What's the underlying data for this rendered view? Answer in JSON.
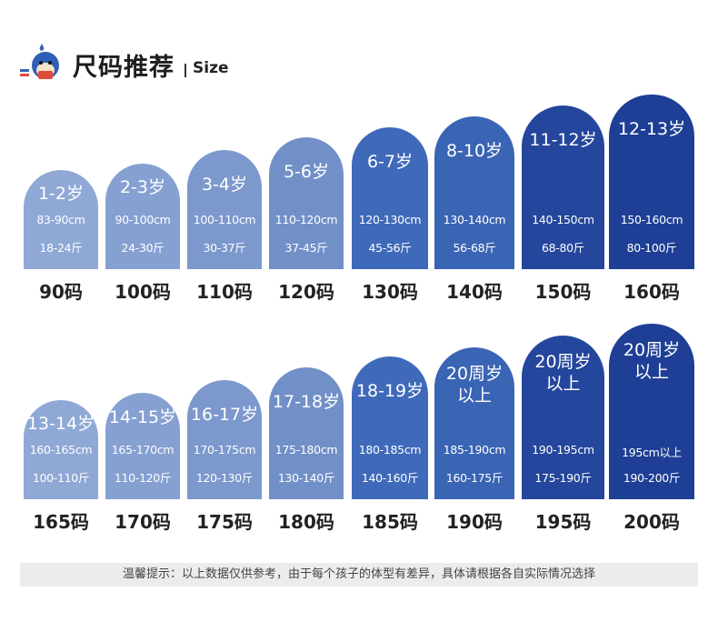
{
  "header": {
    "title": "尺码推荐",
    "subtitle": "Size",
    "mascot_icon": "whale-mascot-icon"
  },
  "rows": [
    {
      "items": [
        {
          "age": "1-2岁",
          "height": "83-90cm",
          "weight": "18-24斤",
          "size": "90码",
          "color": "#8fa8d6"
        },
        {
          "age": "2-3岁",
          "height": "90-100cm",
          "weight": "24-30斤",
          "size": "100码",
          "color": "#86a0d2"
        },
        {
          "age": "3-4岁",
          "height": "100-110cm",
          "weight": "30-37斤",
          "size": "110码",
          "color": "#7c98cd"
        },
        {
          "age": "5-6岁",
          "height": "110-120cm",
          "weight": "37-45斤",
          "size": "120码",
          "color": "#7290c8"
        },
        {
          "age": "6-7岁",
          "height": "120-130cm",
          "weight": "45-56斤",
          "size": "130码",
          "color": "#3f6ab9"
        },
        {
          "age": "8-10岁",
          "height": "130-140cm",
          "weight": "56-68斤",
          "size": "140码",
          "color": "#3a64b4"
        },
        {
          "age": "11-12岁",
          "height": "140-150cm",
          "weight": "68-80斤",
          "size": "150码",
          "color": "#24469c"
        },
        {
          "age": "12-13岁",
          "height": "150-160cm",
          "weight": "80-100斤",
          "size": "160码",
          "color": "#1e3f95"
        }
      ]
    },
    {
      "items": [
        {
          "age": "13-14岁",
          "height": "160-165cm",
          "weight": "100-110斤",
          "size": "165码",
          "color": "#8fa8d6"
        },
        {
          "age": "14-15岁",
          "height": "165-170cm",
          "weight": "110-120斤",
          "size": "170码",
          "color": "#86a0d2"
        },
        {
          "age": "16-17岁",
          "height": "170-175cm",
          "weight": "120-130斤",
          "size": "175码",
          "color": "#7c98cd"
        },
        {
          "age": "17-18岁",
          "height": "175-180cm",
          "weight": "130-140斤",
          "size": "180码",
          "color": "#7290c8"
        },
        {
          "age": "18-19岁",
          "height": "180-185cm",
          "weight": "140-160斤",
          "size": "185码",
          "color": "#3f6ab9"
        },
        {
          "age": "20周岁\n以上",
          "height": "185-190cm",
          "weight": "160-175斤",
          "size": "190码",
          "color": "#3a64b4"
        },
        {
          "age": "20周岁\n以上",
          "height": "190-195cm",
          "weight": "175-190斤",
          "size": "195码",
          "color": "#24469c"
        },
        {
          "age": "20周岁\n以上",
          "height": "195cm以上",
          "weight": "190-200斤",
          "size": "200码",
          "color": "#1e3f95"
        }
      ]
    }
  ],
  "tip": "温馨提示：以上数据仅供参考，由于每个孩子的体型有差异，具体请根据各自实际情况选择"
}
